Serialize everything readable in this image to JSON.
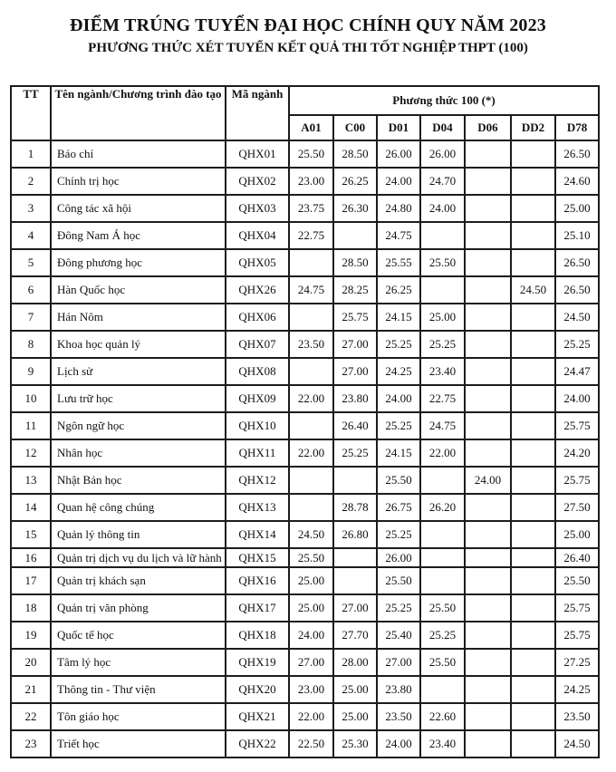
{
  "page": {
    "title": "ĐIỂM TRÚNG TUYỂN ĐẠI HỌC CHÍNH QUY NĂM 2023",
    "subtitle": "PHƯƠNG THỨC XÉT TUYỂN KẾT QUẢ THI TỐT NGHIỆP THPT (100)"
  },
  "table": {
    "columns": {
      "tt": "TT",
      "name": "Tên ngành/Chương trình đào tạo",
      "code": "Mã ngành",
      "group": "Phương thức 100 (*)"
    },
    "score_columns": [
      "A01",
      "C00",
      "D01",
      "D04",
      "D06",
      "DD2",
      "D78"
    ],
    "rows": [
      {
        "tt": "1",
        "name": "Báo chí",
        "code": "QHX01",
        "scores": [
          "25.50",
          "28.50",
          "26.00",
          "26.00",
          "",
          "",
          "26.50"
        ]
      },
      {
        "tt": "2",
        "name": "Chính trị học",
        "code": "QHX02",
        "scores": [
          "23.00",
          "26.25",
          "24.00",
          "24.70",
          "",
          "",
          "24.60"
        ]
      },
      {
        "tt": "3",
        "name": "Công tác xã hội",
        "code": "QHX03",
        "scores": [
          "23.75",
          "26.30",
          "24.80",
          "24.00",
          "",
          "",
          "25.00"
        ]
      },
      {
        "tt": "4",
        "name": "Đông Nam Á học",
        "code": "QHX04",
        "scores": [
          "22.75",
          "",
          "24.75",
          "",
          "",
          "",
          "25.10"
        ]
      },
      {
        "tt": "5",
        "name": "Đông phương học",
        "code": "QHX05",
        "scores": [
          "",
          "28.50",
          "25.55",
          "25.50",
          "",
          "",
          "26.50"
        ]
      },
      {
        "tt": "6",
        "name": "Hàn Quốc học",
        "code": "QHX26",
        "scores": [
          "24.75",
          "28.25",
          "26.25",
          "",
          "",
          "24.50",
          "26.50"
        ]
      },
      {
        "tt": "7",
        "name": "Hán Nôm",
        "code": "QHX06",
        "scores": [
          "",
          "25.75",
          "24.15",
          "25.00",
          "",
          "",
          "24.50"
        ]
      },
      {
        "tt": "8",
        "name": "Khoa học quản lý",
        "code": "QHX07",
        "scores": [
          "23.50",
          "27.00",
          "25.25",
          "25.25",
          "",
          "",
          "25.25"
        ]
      },
      {
        "tt": "9",
        "name": "Lịch sử",
        "code": "QHX08",
        "scores": [
          "",
          "27.00",
          "24.25",
          "23.40",
          "",
          "",
          "24.47"
        ]
      },
      {
        "tt": "10",
        "name": "Lưu trữ học",
        "code": "QHX09",
        "scores": [
          "22.00",
          "23.80",
          "24.00",
          "22.75",
          "",
          "",
          "24.00"
        ]
      },
      {
        "tt": "11",
        "name": "Ngôn ngữ học",
        "code": "QHX10",
        "scores": [
          "",
          "26.40",
          "25.25",
          "24.75",
          "",
          "",
          "25.75"
        ]
      },
      {
        "tt": "12",
        "name": "Nhân học",
        "code": "QHX11",
        "scores": [
          "22.00",
          "25.25",
          "24.15",
          "22.00",
          "",
          "",
          "24.20"
        ]
      },
      {
        "tt": "13",
        "name": "Nhật Bản học",
        "code": "QHX12",
        "scores": [
          "",
          "",
          "25.50",
          "",
          "24.00",
          "",
          "25.75"
        ]
      },
      {
        "tt": "14",
        "name": "Quan hệ công chúng",
        "code": "QHX13",
        "scores": [
          "",
          "28.78",
          "26.75",
          "26.20",
          "",
          "",
          "27.50"
        ]
      },
      {
        "tt": "15",
        "name": "Quản lý thông tin",
        "code": "QHX14",
        "scores": [
          "24.50",
          "26.80",
          "25.25",
          "",
          "",
          "",
          "25.00"
        ]
      },
      {
        "tt": "16",
        "name": "Quản trị dịch vụ du lịch và lữ hành",
        "code": "QHX15",
        "scores": [
          "25.50",
          "",
          "26.00",
          "",
          "",
          "",
          "26.40"
        ],
        "clipped": true
      },
      {
        "tt": "17",
        "name": "Quản trị khách sạn",
        "code": "QHX16",
        "scores": [
          "25.00",
          "",
          "25.50",
          "",
          "",
          "",
          "25.50"
        ]
      },
      {
        "tt": "18",
        "name": "Quản trị văn phòng",
        "code": "QHX17",
        "scores": [
          "25.00",
          "27.00",
          "25.25",
          "25.50",
          "",
          "",
          "25.75"
        ]
      },
      {
        "tt": "19",
        "name": "Quốc tế học",
        "code": "QHX18",
        "scores": [
          "24.00",
          "27.70",
          "25.40",
          "25.25",
          "",
          "",
          "25.75"
        ]
      },
      {
        "tt": "20",
        "name": "Tâm lý học",
        "code": "QHX19",
        "scores": [
          "27.00",
          "28.00",
          "27.00",
          "25.50",
          "",
          "",
          "27.25"
        ]
      },
      {
        "tt": "21",
        "name": "Thông tin - Thư viện",
        "code": "QHX20",
        "scores": [
          "23.00",
          "25.00",
          "23.80",
          "",
          "",
          "",
          "24.25"
        ]
      },
      {
        "tt": "22",
        "name": "Tôn giáo học",
        "code": "QHX21",
        "scores": [
          "22.00",
          "25.00",
          "23.50",
          "22.60",
          "",
          "",
          "23.50"
        ]
      },
      {
        "tt": "23",
        "name": "Triết học",
        "code": "QHX22",
        "scores": [
          "22.50",
          "25.30",
          "24.00",
          "23.40",
          "",
          "",
          "24.50"
        ]
      }
    ]
  },
  "colors": {
    "background": "#ffffff",
    "text": "#121212",
    "border": "#1c1c1c"
  }
}
